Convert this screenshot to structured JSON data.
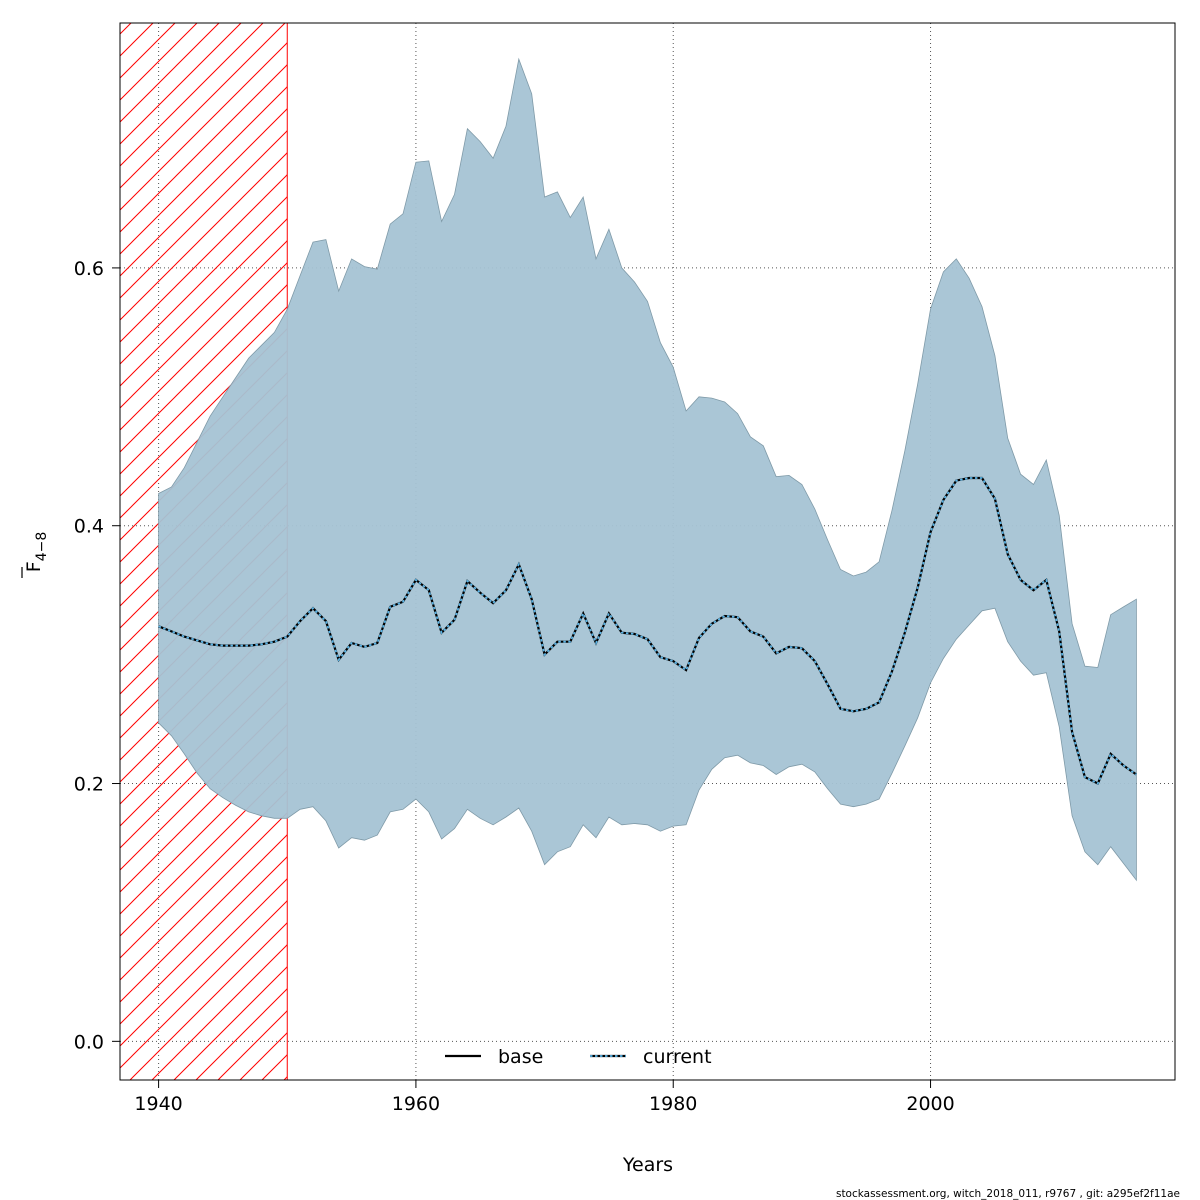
{
  "chart_data": {
    "type": "area",
    "xlabel": "Years",
    "ylabel_main": "F",
    "ylabel_sub": "4−8",
    "xlim": [
      1937,
      2019
    ],
    "ylim": [
      -0.03,
      0.79
    ],
    "x_ticks": [
      1940,
      1960,
      1980,
      2000
    ],
    "y_ticks": [
      0.0,
      0.2,
      0.4,
      0.6
    ],
    "x_tick_labels": [
      "1940",
      "1960",
      "1980",
      "2000"
    ],
    "y_tick_labels": [
      "0.0",
      "0.2",
      "0.4",
      "0.6"
    ],
    "grid": true,
    "colors": {
      "band": "#a5c3d4",
      "band_edge": "#7f9aa8",
      "current": "#0a3d5c",
      "base": "#000000",
      "hatch": "#ff0000"
    },
    "hatched_region": {
      "x_from": 1937,
      "x_to": 1950
    },
    "legend": {
      "placement": "bottom",
      "entries": [
        {
          "label": "base",
          "style": "solid"
        },
        {
          "label": "current",
          "style": "dotted"
        }
      ]
    },
    "x": [
      1940,
      1941,
      1942,
      1943,
      1944,
      1945,
      1946,
      1947,
      1948,
      1949,
      1950,
      1951,
      1952,
      1953,
      1954,
      1955,
      1956,
      1957,
      1958,
      1959,
      1960,
      1961,
      1962,
      1963,
      1964,
      1965,
      1966,
      1967,
      1968,
      1969,
      1970,
      1971,
      1972,
      1973,
      1974,
      1975,
      1976,
      1977,
      1978,
      1979,
      1980,
      1981,
      1982,
      1983,
      1984,
      1985,
      1986,
      1987,
      1988,
      1989,
      1990,
      1991,
      1992,
      1993,
      1994,
      1995,
      1996,
      1997,
      1998,
      1999,
      2000,
      2001,
      2002,
      2003,
      2004,
      2005,
      2006,
      2007,
      2008,
      2009,
      2010,
      2011,
      2012,
      2013,
      2014,
      2015,
      2016
    ],
    "series": [
      {
        "name": "current",
        "role": "estimate",
        "values": [
          0.322,
          0.318,
          0.314,
          0.311,
          0.308,
          0.307,
          0.307,
          0.307,
          0.308,
          0.31,
          0.314,
          0.326,
          0.336,
          0.326,
          0.296,
          0.309,
          0.306,
          0.309,
          0.337,
          0.341,
          0.358,
          0.35,
          0.317,
          0.327,
          0.357,
          0.348,
          0.34,
          0.35,
          0.37,
          0.343,
          0.3,
          0.31,
          0.31,
          0.332,
          0.309,
          0.332,
          0.317,
          0.316,
          0.312,
          0.298,
          0.295,
          0.288,
          0.313,
          0.324,
          0.33,
          0.329,
          0.318,
          0.314,
          0.301,
          0.306,
          0.305,
          0.295,
          0.277,
          0.258,
          0.256,
          0.258,
          0.263,
          0.287,
          0.317,
          0.352,
          0.395,
          0.42,
          0.435,
          0.437,
          0.437,
          0.421,
          0.378,
          0.358,
          0.35,
          0.358,
          0.318,
          0.24,
          0.205,
          0.2,
          0.223,
          0.214,
          0.207
        ]
      },
      {
        "name": "upper",
        "role": "upper-bound",
        "values": [
          0.425,
          0.43,
          0.445,
          0.465,
          0.485,
          0.5,
          0.515,
          0.53,
          0.54,
          0.55,
          0.568,
          0.594,
          0.62,
          0.622,
          0.582,
          0.607,
          0.601,
          0.599,
          0.634,
          0.642,
          0.682,
          0.683,
          0.636,
          0.657,
          0.708,
          0.698,
          0.685,
          0.71,
          0.762,
          0.735,
          0.655,
          0.659,
          0.639,
          0.655,
          0.607,
          0.63,
          0.6,
          0.589,
          0.574,
          0.542,
          0.523,
          0.489,
          0.5,
          0.499,
          0.496,
          0.487,
          0.469,
          0.462,
          0.438,
          0.439,
          0.432,
          0.413,
          0.389,
          0.366,
          0.361,
          0.364,
          0.372,
          0.412,
          0.458,
          0.51,
          0.568,
          0.597,
          0.607,
          0.592,
          0.57,
          0.532,
          0.468,
          0.44,
          0.432,
          0.451,
          0.408,
          0.324,
          0.291,
          0.29,
          0.331,
          0.337,
          0.343
        ]
      },
      {
        "name": "lower",
        "role": "lower-bound",
        "values": [
          0.247,
          0.237,
          0.223,
          0.208,
          0.196,
          0.189,
          0.183,
          0.178,
          0.175,
          0.173,
          0.173,
          0.18,
          0.182,
          0.171,
          0.15,
          0.158,
          0.156,
          0.16,
          0.178,
          0.18,
          0.188,
          0.178,
          0.157,
          0.165,
          0.18,
          0.173,
          0.168,
          0.174,
          0.181,
          0.163,
          0.137,
          0.147,
          0.151,
          0.168,
          0.158,
          0.174,
          0.168,
          0.169,
          0.168,
          0.163,
          0.167,
          0.168,
          0.195,
          0.211,
          0.22,
          0.222,
          0.216,
          0.214,
          0.207,
          0.213,
          0.215,
          0.209,
          0.196,
          0.184,
          0.182,
          0.184,
          0.188,
          0.208,
          0.229,
          0.251,
          0.278,
          0.297,
          0.312,
          0.323,
          0.334,
          0.336,
          0.31,
          0.295,
          0.284,
          0.286,
          0.244,
          0.175,
          0.147,
          0.137,
          0.151,
          0.138,
          0.125
        ]
      }
    ]
  },
  "footer": {
    "text": "stockassessment.org, witch_2018_011, r9767 , git: a295ef2f11ae"
  }
}
